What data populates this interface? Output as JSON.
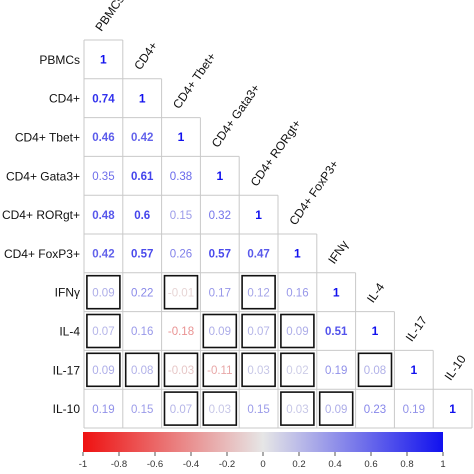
{
  "chart_data": {
    "type": "heatmap",
    "subtype": "lower-triangular correlation matrix",
    "title": "",
    "variables": [
      "PBMCs",
      "CD4+",
      "CD4+ Tbet+",
      "CD4+ Gata3+",
      "CD4+ RORgt+",
      "CD4+ FoxP3+",
      "IFNγ",
      "IL-4",
      "IL-17",
      "IL-10"
    ],
    "row_labels": [
      "PBMCs",
      "CD4+",
      "CD4+ Tbet+",
      "CD4+ Gata3+",
      "CD4+ RORgt+",
      "CD4+ FoxP3+",
      "IFNγ",
      "IL-4",
      "IL-17",
      "IL-10"
    ],
    "column_labels": [
      "PBMCs",
      "CD4+",
      "CD4+ Tbet+",
      "CD4+ Gata3+",
      "CD4+ RORgt+",
      "CD4+ FoxP3+",
      "IFNγ",
      "IL-4",
      "IL-17",
      "IL-10"
    ],
    "values": [
      [
        "1"
      ],
      [
        "0.74",
        "1"
      ],
      [
        "0.46",
        "0.42",
        "1"
      ],
      [
        "0.35",
        "0.61",
        "0.38",
        "1"
      ],
      [
        "0.48",
        "0.6",
        "0.15",
        "0.32",
        "1"
      ],
      [
        "0.42",
        "0.57",
        "0.26",
        "0.57",
        "0.47",
        "1"
      ],
      [
        "0.09",
        "0.22",
        "-0.01",
        "0.17",
        "0.12",
        "0.16",
        "1"
      ],
      [
        "0.07",
        "0.16",
        "-0.18",
        "0.09",
        "0.07",
        "0.09",
        "0.51",
        "1"
      ],
      [
        "0.09",
        "0.08",
        "-0.03",
        "-0.11",
        "0.03",
        "0.02",
        "0.19",
        "0.08",
        "1"
      ],
      [
        "0.19",
        "0.15",
        "0.07",
        "0.03",
        "0.15",
        "0.03",
        "0.09",
        "0.23",
        "0.19",
        "1"
      ]
    ],
    "boxed_cells": [
      [
        6,
        0
      ],
      [
        6,
        2
      ],
      [
        6,
        4
      ],
      [
        7,
        0
      ],
      [
        7,
        3
      ],
      [
        7,
        4
      ],
      [
        7,
        5
      ],
      [
        8,
        0
      ],
      [
        8,
        1
      ],
      [
        8,
        2
      ],
      [
        8,
        3
      ],
      [
        8,
        4
      ],
      [
        8,
        5
      ],
      [
        8,
        7
      ],
      [
        9,
        2
      ],
      [
        9,
        3
      ],
      [
        9,
        5
      ],
      [
        9,
        6
      ]
    ],
    "colorbar": {
      "range": [
        -1,
        1
      ],
      "ticks": [
        "-1",
        "-0.8",
        "-0.6",
        "-0.4",
        "-0.2",
        "0",
        "0.2",
        "0.4",
        "0.6",
        "0.8",
        "1"
      ],
      "colors": {
        "negative": "#ee1111",
        "zero": "#e6e6e6",
        "positive": "#1111ee"
      }
    },
    "grid": true,
    "legend": "bottom"
  }
}
